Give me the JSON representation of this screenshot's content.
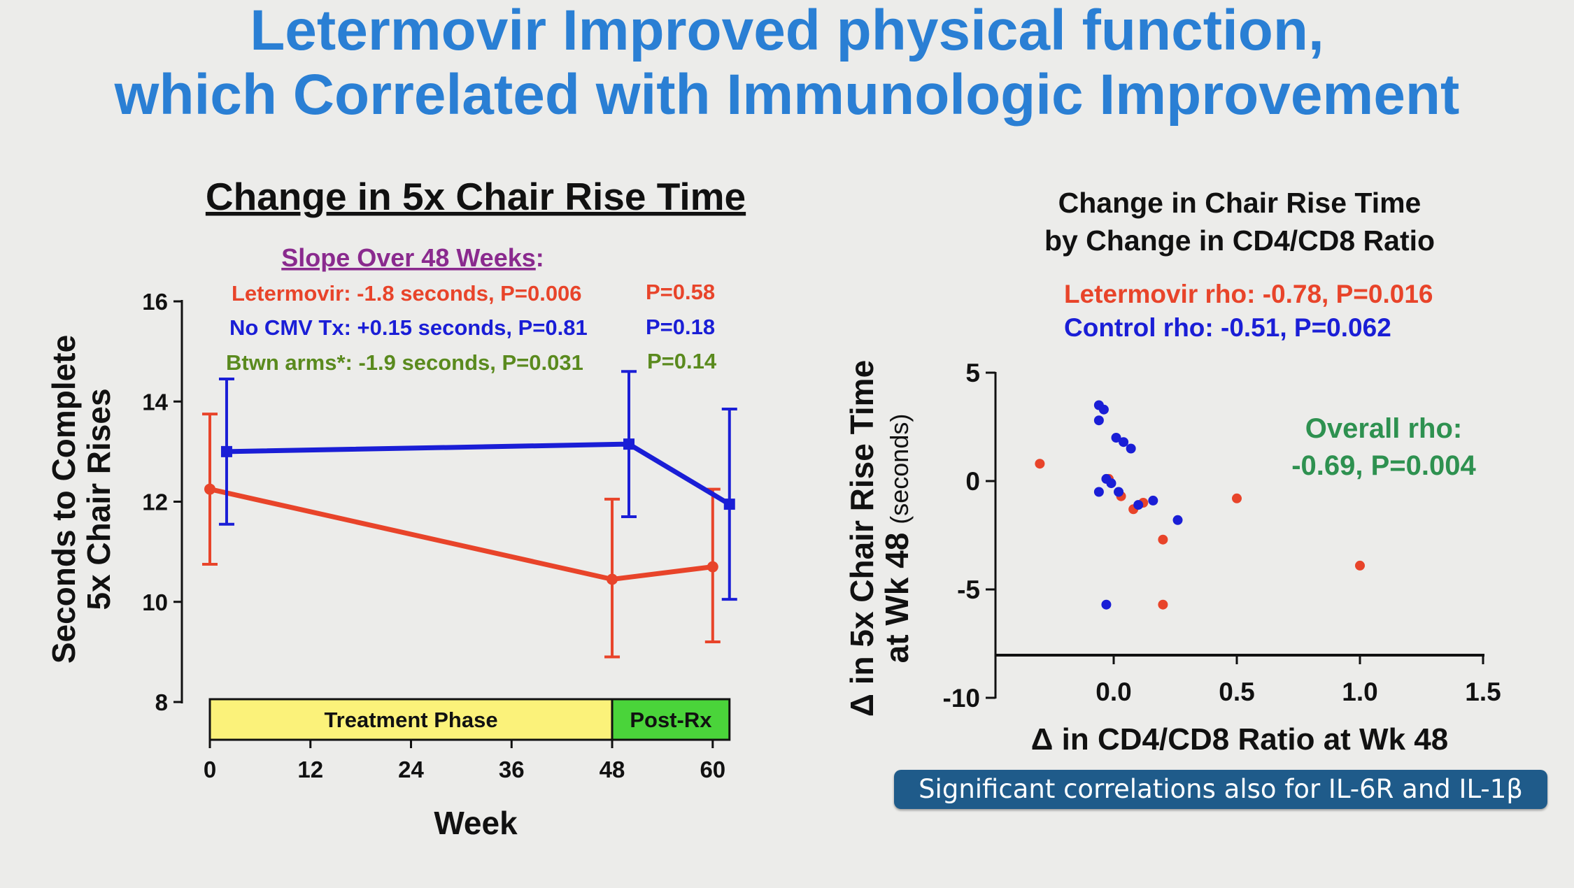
{
  "slide": {
    "title_line1": "Letermovir Improved physical function,",
    "title_line2": "which Correlated with Immunologic Improvement",
    "banner": "Significant correlations also for IL-6R and IL-1β"
  },
  "colors": {
    "title": "#2a7fd4",
    "letermovir": "#e8442a",
    "control": "#1a1ed6",
    "between": "#5a8a1e",
    "overall": "#2e9150",
    "slope_header": "#8a2a8e",
    "treatment_phase": "#fbf27a",
    "post_rx": "#4ad43a",
    "banner": "#1f5b8a"
  },
  "chart_data": [
    {
      "type": "line",
      "title": "Change in 5x Chair Rise Time",
      "xlabel": "Week",
      "ylabel_line1": "Seconds to Complete",
      "ylabel_line2": "5x Chair Rises",
      "xlim": [
        0,
        62
      ],
      "ylim": [
        8,
        16
      ],
      "xticks": [
        0,
        12,
        24,
        36,
        48,
        60
      ],
      "yticks": [
        8,
        10,
        12,
        14,
        16
      ],
      "annotation_header": "Slope Over 48 Weeks",
      "annotation_header_suffix": ":",
      "annotations": [
        {
          "text": "Letermovir: -1.8 seconds, P=0.006",
          "p": "P=0.58",
          "color_key": "letermovir"
        },
        {
          "text": "No CMV Tx: +0.15 seconds, P=0.81",
          "p": "P=0.18",
          "color_key": "control"
        },
        {
          "text": "Btwn arms*: -1.9 seconds, P=0.031",
          "p": "P=0.14",
          "color_key": "between"
        }
      ],
      "phases": [
        {
          "label": "Treatment Phase",
          "x": [
            0,
            48
          ],
          "color_key": "treatment_phase"
        },
        {
          "label": "Post-Rx",
          "x": [
            48,
            62
          ],
          "color_key": "post_rx"
        }
      ],
      "series": [
        {
          "color_key": "letermovir",
          "points": [
            {
              "x": 0,
              "y": 12.25,
              "lo": 10.75,
              "hi": 13.75
            },
            {
              "x": 48,
              "y": 10.45,
              "lo": 8.9,
              "hi": 12.05
            },
            {
              "x": 60,
              "y": 10.7,
              "lo": 9.2,
              "hi": 12.25
            }
          ]
        },
        {
          "color_key": "control",
          "points": [
            {
              "x": 2,
              "y": 13.0,
              "lo": 11.55,
              "hi": 14.45
            },
            {
              "x": 50,
              "y": 13.15,
              "lo": 11.7,
              "hi": 14.6
            },
            {
              "x": 62,
              "y": 11.95,
              "lo": 10.05,
              "hi": 13.85
            }
          ]
        }
      ]
    },
    {
      "type": "scatter",
      "title_line1": "Change in Chair Rise Time",
      "title_line2": "by Change in CD4/CD8 Ratio",
      "xlabel": "Δ in CD4/CD8 Ratio at Wk 48",
      "ylabel_line1": "Δ in 5x Chair Rise Time",
      "ylabel_line2": "at Wk 48",
      "ylabel_unit": "(seconds)",
      "xlim": [
        -0.48,
        1.5
      ],
      "ylim": [
        -10,
        5
      ],
      "xticks": [
        0.0,
        0.5,
        1.0,
        1.5
      ],
      "xtick_labels": [
        "0.0",
        "0.5",
        "1.0",
        "1.5"
      ],
      "yticks": [
        -10,
        -5,
        0,
        5
      ],
      "stats": [
        {
          "text": "Letermovir rho: -0.78, P=0.016",
          "color_key": "letermovir"
        },
        {
          "text": "Control rho: -0.51, P=0.062",
          "color_key": "control"
        }
      ],
      "overall_line1": "Overall rho:",
      "overall_line2": "-0.69, P=0.004",
      "series": [
        {
          "color_key": "letermovir",
          "points": [
            [
              -0.3,
              0.8
            ],
            [
              -0.02,
              0.1
            ],
            [
              0.03,
              -0.7
            ],
            [
              0.08,
              -1.3
            ],
            [
              0.12,
              -1.0
            ],
            [
              0.2,
              -2.7
            ],
            [
              0.2,
              -5.7
            ],
            [
              0.5,
              -0.8
            ],
            [
              1.0,
              -3.9
            ]
          ]
        },
        {
          "color_key": "control",
          "points": [
            [
              -0.06,
              3.5
            ],
            [
              -0.04,
              3.3
            ],
            [
              -0.06,
              2.8
            ],
            [
              0.01,
              2.0
            ],
            [
              0.04,
              1.8
            ],
            [
              0.07,
              1.5
            ],
            [
              -0.03,
              0.1
            ],
            [
              -0.01,
              -0.1
            ],
            [
              -0.06,
              -0.5
            ],
            [
              0.02,
              -0.5
            ],
            [
              0.1,
              -1.1
            ],
            [
              0.16,
              -0.9
            ],
            [
              0.26,
              -1.8
            ],
            [
              -0.03,
              -5.7
            ]
          ]
        }
      ]
    }
  ]
}
